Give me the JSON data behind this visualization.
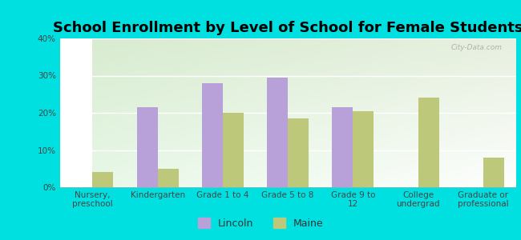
{
  "title": "School Enrollment by Level of School for Female Students",
  "categories": [
    "Nursery,\npreschool",
    "Kindergarten",
    "Grade 1 to 4",
    "Grade 5 to 8",
    "Grade 9 to\n12",
    "College\nundergrad",
    "Graduate or\nprofessional"
  ],
  "lincoln_values": [
    0.0,
    21.5,
    28.0,
    29.5,
    21.5,
    0.0,
    0.0
  ],
  "maine_values": [
    4.0,
    5.0,
    20.0,
    18.5,
    20.5,
    24.0,
    8.0
  ],
  "lincoln_color": "#b8a0d8",
  "maine_color": "#bec87a",
  "background_color": "#00e0e0",
  "plot_bg_topleft": "#d8ecd0",
  "plot_bg_topright": "#e8f0e8",
  "plot_bg_bottom": "#f8fff8",
  "ylim": [
    0,
    40
  ],
  "yticks": [
    0,
    10,
    20,
    30,
    40
  ],
  "bar_width": 0.32,
  "title_fontsize": 13,
  "tick_fontsize": 7.5,
  "legend_fontsize": 9,
  "watermark_text": "City-Data.com"
}
